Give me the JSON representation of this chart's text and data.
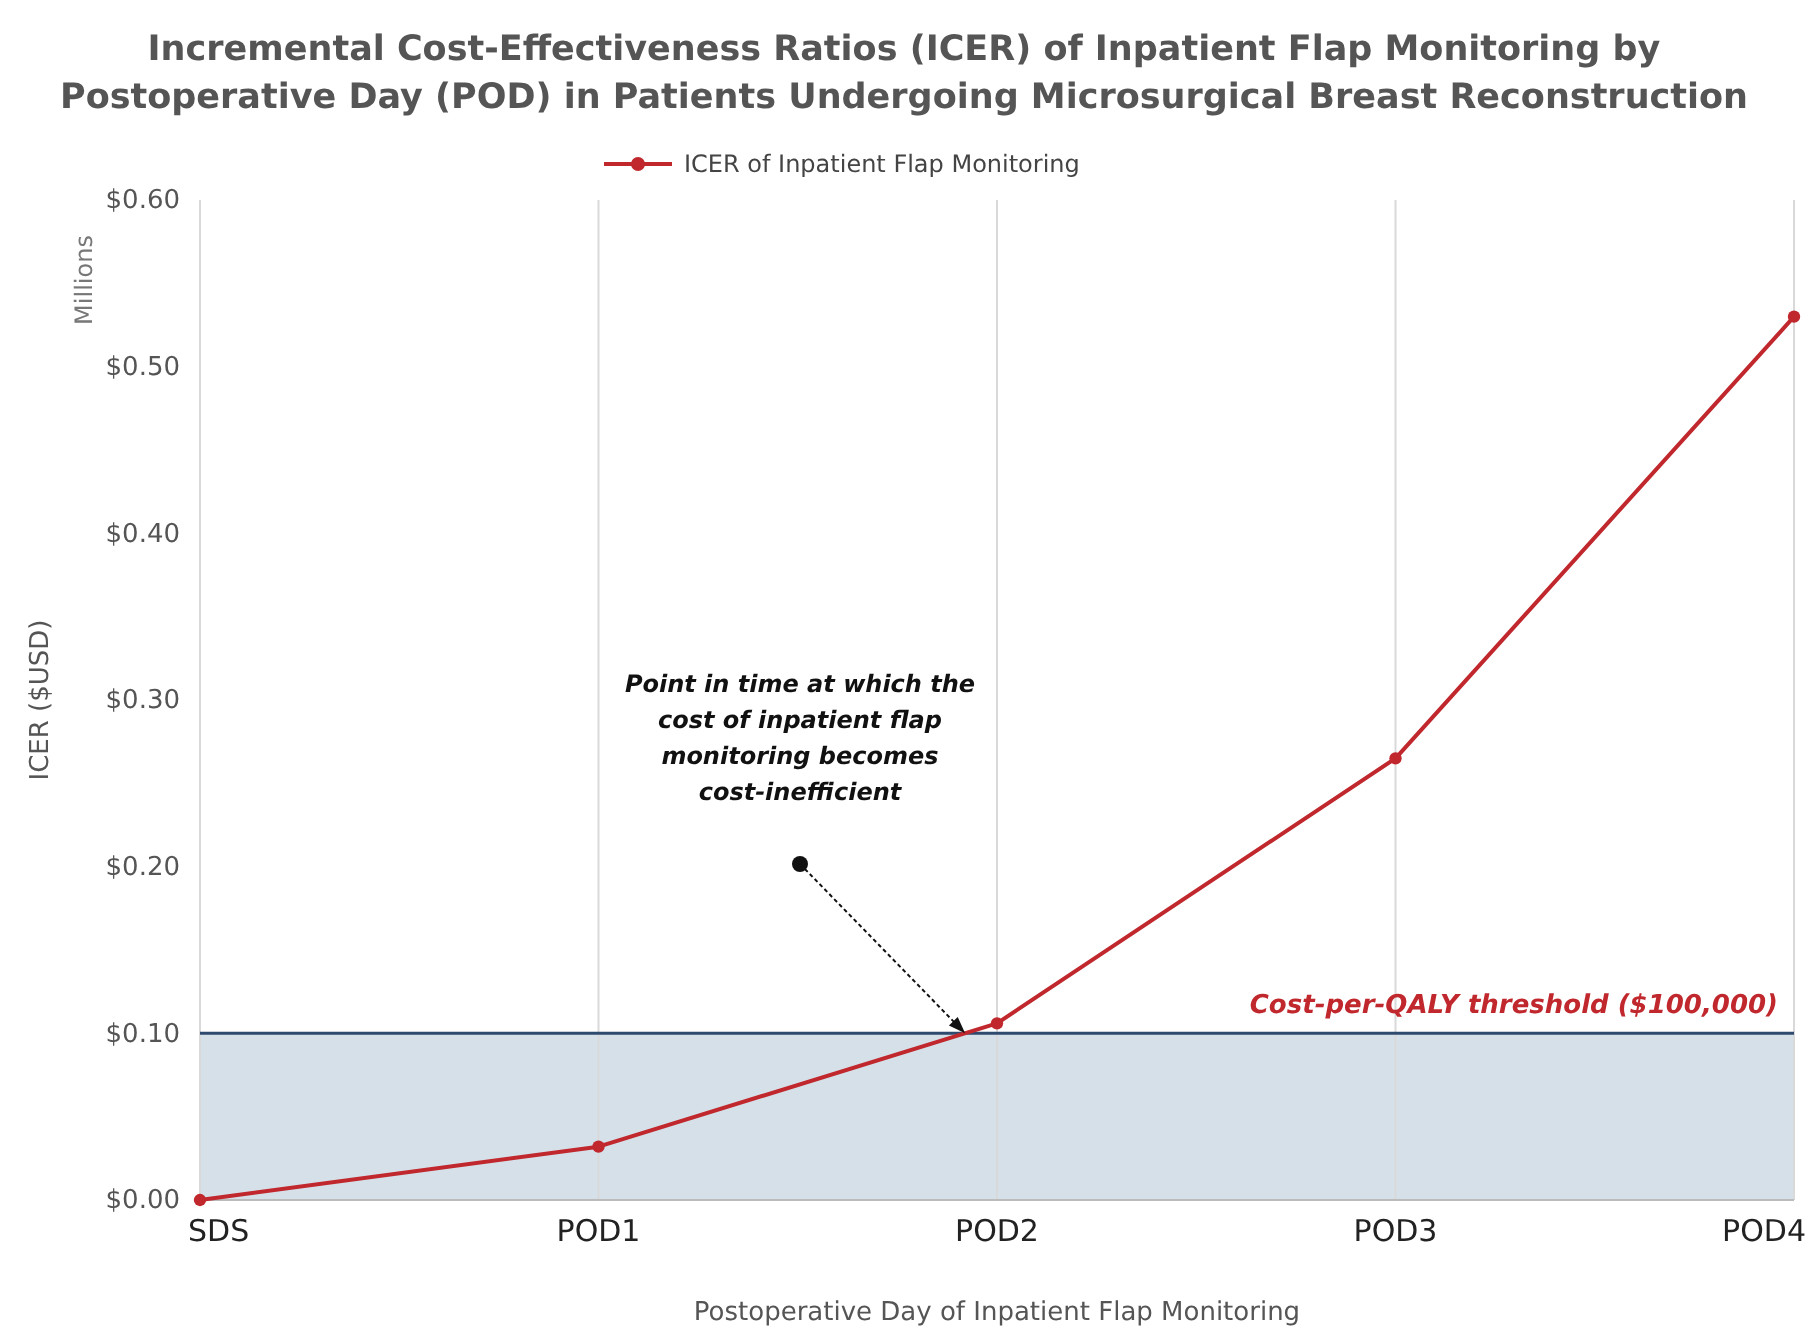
{
  "chart_data": {
    "type": "line",
    "title": "Incremental Cost-Effectiveness Ratios (ICER) of Inpatient Flap Monitoring by Postoperative Day (POD) in Patients Undergoing Microsurgical Breast Reconstruction",
    "xlabel": "Postoperative Day of Inpatient Flap Monitoring",
    "ylabel": "ICER ($USD)",
    "categories": [
      "SDS",
      "POD1",
      "POD2",
      "POD3",
      "POD4"
    ],
    "series": [
      {
        "name": "ICER of Inpatient Flap Monitoring",
        "color": "#c0282d",
        "values": [
          0,
          0.032,
          0.106,
          0.265,
          0.53
        ]
      }
    ],
    "ylim": [
      0,
      0.6
    ],
    "yticks": [
      {
        "value": 0,
        "label": "$0.00"
      },
      {
        "value": 0.1,
        "label": "$0.10"
      },
      {
        "value": 0.2,
        "label": "$0.20"
      },
      {
        "value": 0.3,
        "label": "$0.30"
      },
      {
        "value": 0.4,
        "label": "$0.40"
      },
      {
        "value": 0.5,
        "label": "$0.50"
      },
      {
        "value": 0.6,
        "label": "$0.60"
      }
    ],
    "grid": "x",
    "legend": "top",
    "marker": "circle",
    "line_style": "solid",
    "ref_lines": [
      {
        "axis": "y",
        "value": 0.1,
        "label": "Cost-per-QALY threshold ($100,000)",
        "color": "#2e4a6e"
      }
    ],
    "bands": [
      {
        "axis": "y",
        "from": 0,
        "to": 0.1,
        "color": "#d6e0e8"
      }
    ],
    "annotations": [
      "Millions",
      "Point in time at which the cost of inpatient flap monitoring becomes cost-inefficient"
    ]
  }
}
